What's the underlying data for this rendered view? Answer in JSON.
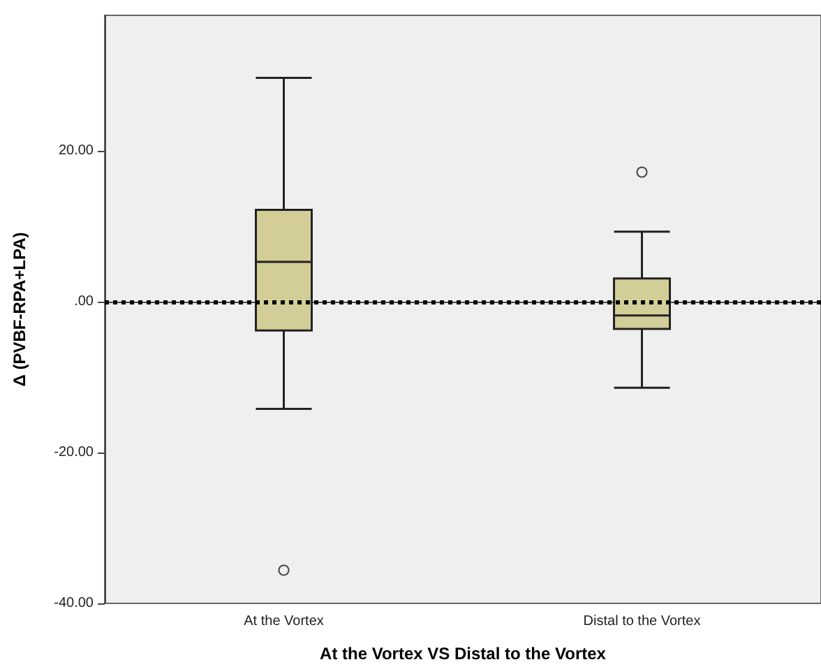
{
  "chart_data": {
    "type": "box",
    "xlabel": "At the Vortex VS Distal to the Vortex",
    "ylabel": "Δ (PVBF-RPA+LPA)",
    "categories": [
      "At the Vortex",
      "Distal to the Vortex"
    ],
    "series": [
      {
        "color": "#d3cd98",
        "boxes": [
          {
            "low": -14.2,
            "q1": -3.8,
            "median": 5.3,
            "q3": 12.2,
            "high": 29.7,
            "outliers": [
              -35.6
            ]
          },
          {
            "low": -11.4,
            "q1": -3.6,
            "median": -1.8,
            "q3": 3.1,
            "high": 9.3,
            "outliers": [
              17.2
            ]
          }
        ]
      }
    ],
    "ylim": [
      -40,
      38
    ],
    "yticks": [
      {
        "value": -40,
        "label": "-40.00"
      },
      {
        "value": -20,
        "label": "-20.00"
      },
      {
        "value": 0,
        "label": ".00"
      },
      {
        "value": 20,
        "label": "20.00"
      }
    ],
    "ref_lines": [
      {
        "axis": "y",
        "value": 0,
        "line_style": "dotted",
        "color": "#000000"
      }
    ],
    "marker": "circle"
  }
}
